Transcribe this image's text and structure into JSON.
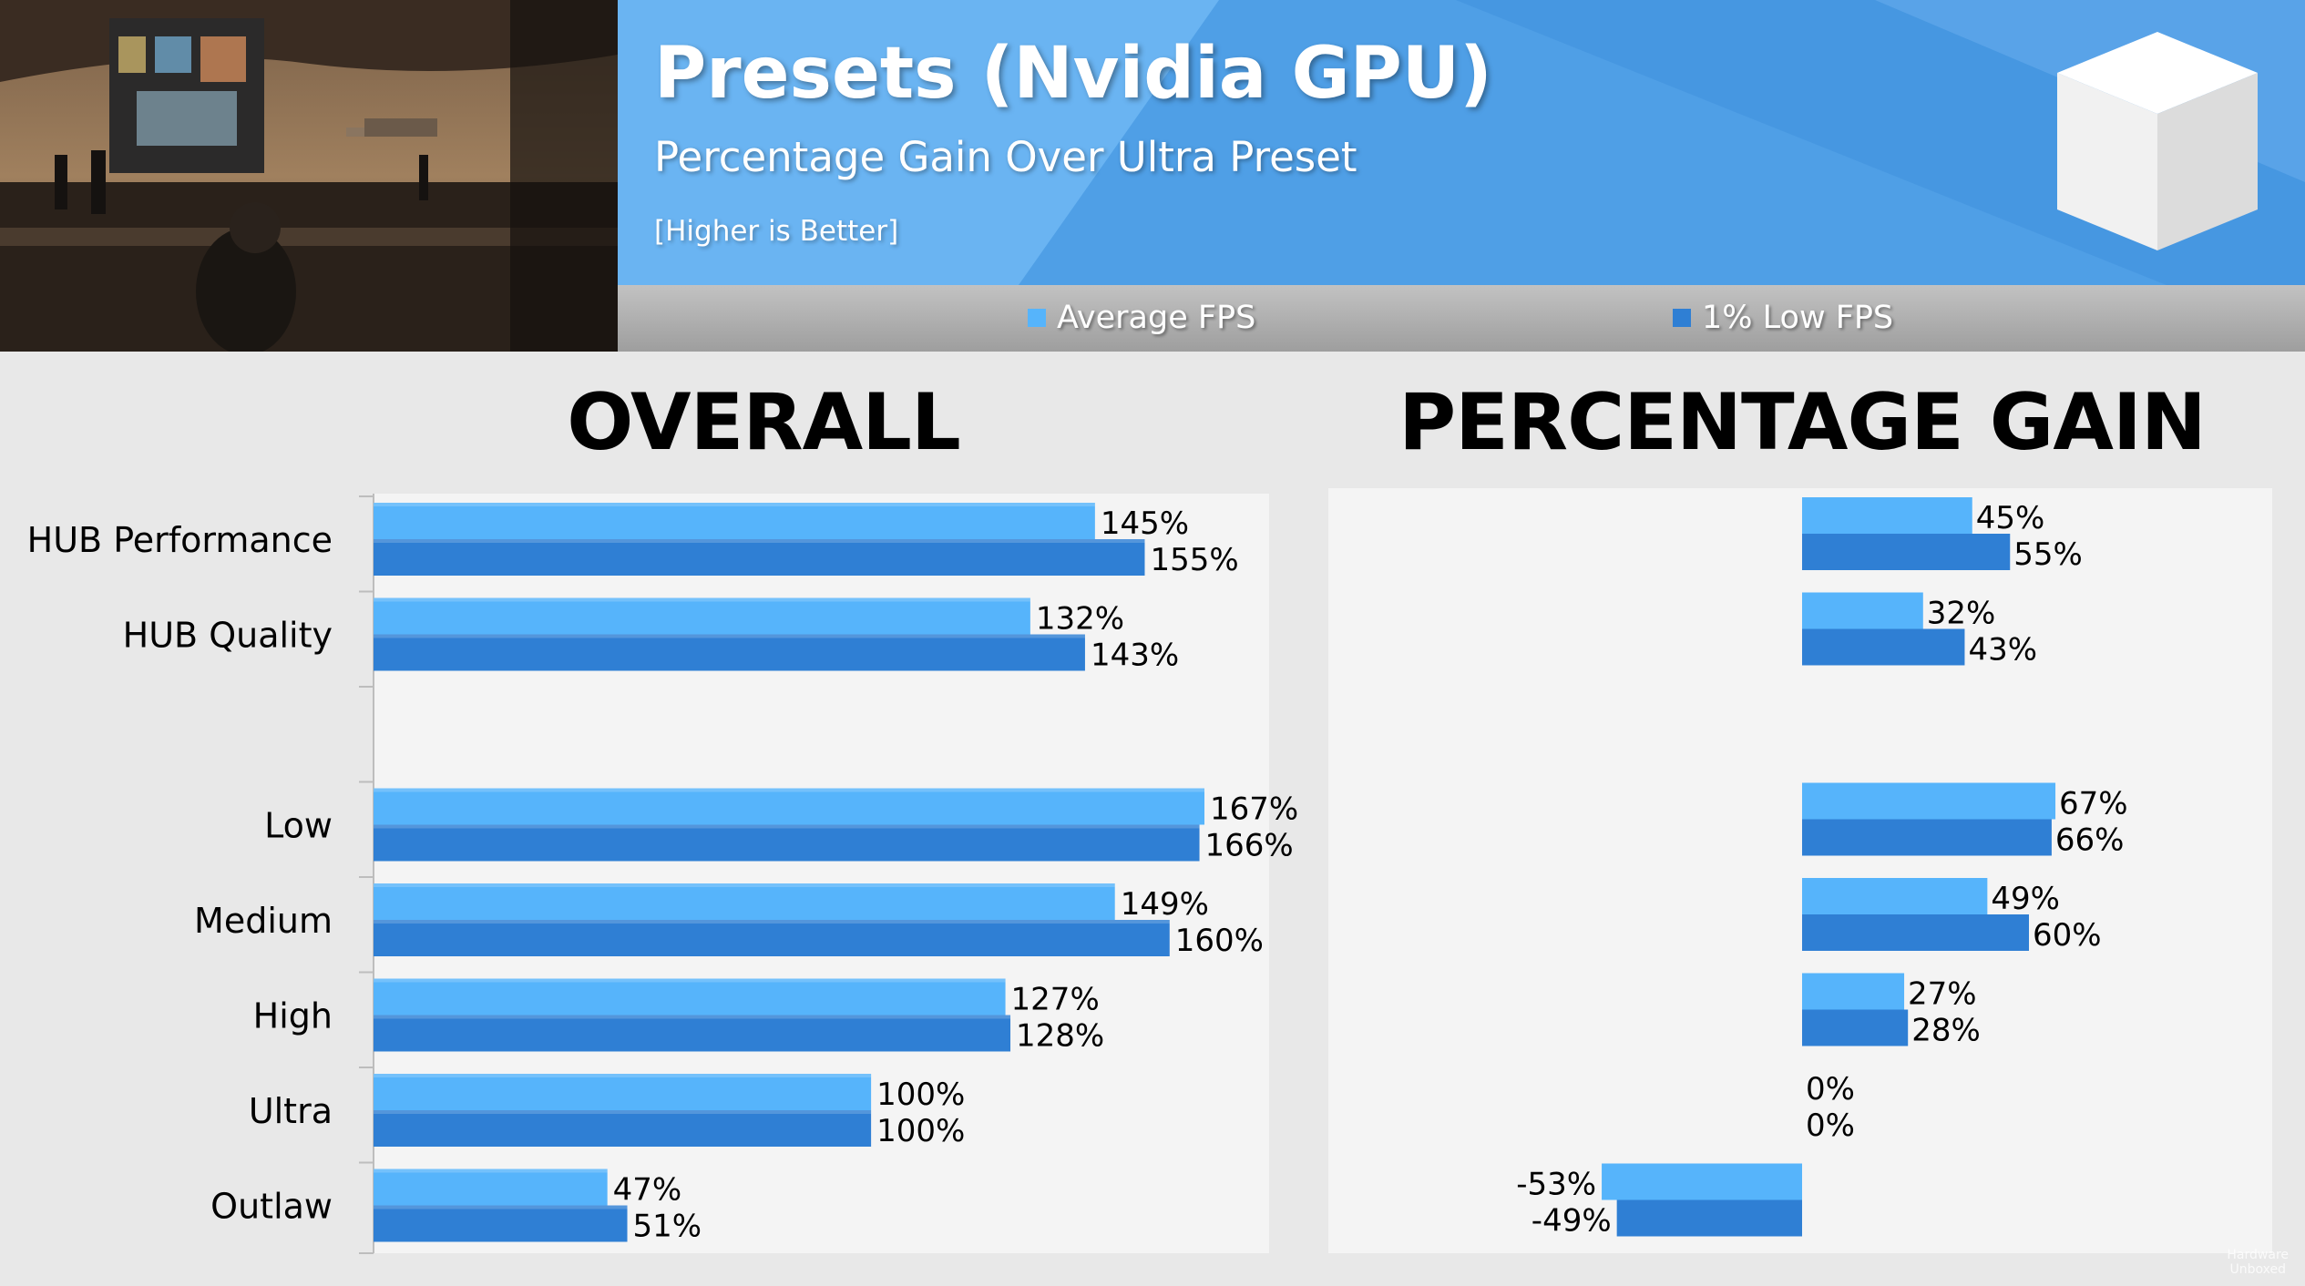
{
  "header": {
    "title": "Presets (Nvidia GPU)",
    "subtitle": "Percentage Gain Over Ultra Preset",
    "note": "[Higher is Better]"
  },
  "legend": {
    "average": "Average FPS",
    "low1": "1% Low FPS"
  },
  "colors": {
    "average": "#56b4fb",
    "low1": "#2f7fd4",
    "banner": "#4f9fe6",
    "panel": "#f4f4f4",
    "page": "#e8e8e8"
  },
  "watermark": [
    "Hardware",
    "Unboxed"
  ],
  "chart_data": [
    {
      "type": "bar",
      "orientation": "horizontal",
      "title": "OVERALL",
      "categories": [
        "HUB Performance",
        "HUB Quality",
        "",
        "Low",
        "Medium",
        "High",
        "Ultra",
        "Outlaw"
      ],
      "series": [
        {
          "name": "Average FPS",
          "values": [
            145,
            132,
            null,
            167,
            149,
            127,
            100,
            47
          ],
          "labels": [
            "145%",
            "132%",
            "",
            "167%",
            "149%",
            "127%",
            "100%",
            "47%"
          ]
        },
        {
          "name": "1% Low FPS",
          "values": [
            155,
            143,
            null,
            166,
            160,
            128,
            100,
            51
          ],
          "labels": [
            "155%",
            "143%",
            "",
            "166%",
            "160%",
            "128%",
            "100%",
            "51%"
          ]
        }
      ],
      "xlim": [
        0,
        180
      ]
    },
    {
      "type": "bar",
      "orientation": "horizontal",
      "title": "PERCENTAGE GAIN",
      "categories": [
        "HUB Performance",
        "HUB Quality",
        "",
        "Low",
        "Medium",
        "High",
        "Ultra",
        "Outlaw"
      ],
      "series": [
        {
          "name": "Average FPS",
          "values": [
            45,
            32,
            null,
            67,
            49,
            27,
            0,
            -53
          ],
          "labels": [
            "45%",
            "32%",
            "",
            "67%",
            "49%",
            "27%",
            "0%",
            "-53%"
          ]
        },
        {
          "name": "1% Low FPS",
          "values": [
            55,
            43,
            null,
            66,
            60,
            28,
            0,
            -49
          ],
          "labels": [
            "55%",
            "43%",
            "",
            "66%",
            "60%",
            "28%",
            "0%",
            "-49%"
          ]
        }
      ],
      "xlim": [
        -100,
        100
      ]
    }
  ]
}
